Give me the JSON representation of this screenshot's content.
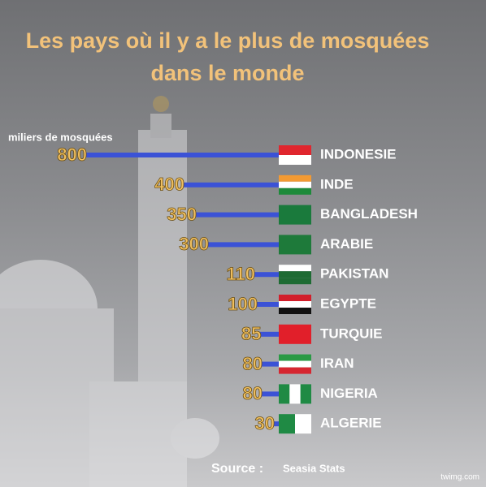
{
  "chart_data": {
    "type": "bar",
    "orientation": "horizontal",
    "title": "Les pays où il y a le plus de mosquées\ndans le monde",
    "axis_label": "miliers de mosquées",
    "categories": [
      "INDONESIE",
      "INDE",
      "BANGLADESH",
      "ARABIE",
      "PAKISTAN",
      "EGYPTE",
      "TURQUIE",
      "IRAN",
      "NIGERIA",
      "ALGERIE"
    ],
    "values": [
      800,
      400,
      350,
      300,
      110,
      100,
      85,
      80,
      80,
      30
    ],
    "color": "#3b52d6",
    "source_label": "Source :",
    "source": "Seasia Stats",
    "watermark": "twimg.com"
  }
}
